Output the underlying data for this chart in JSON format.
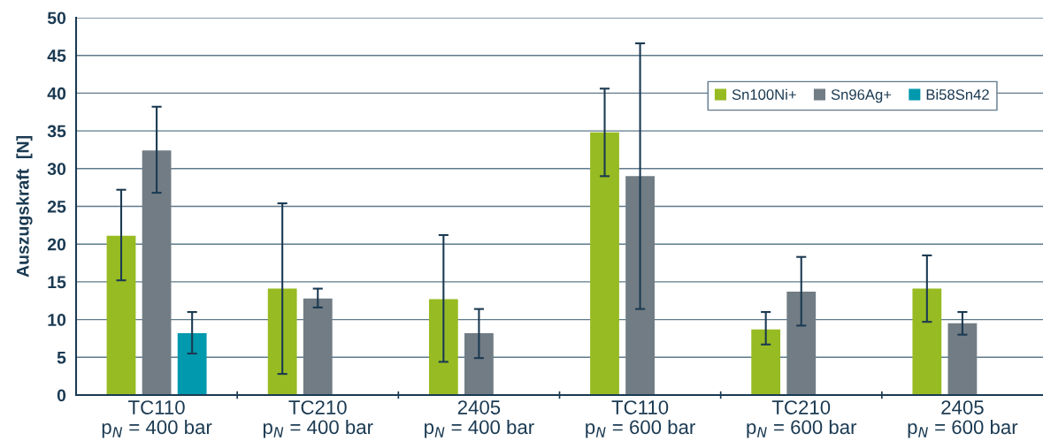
{
  "chart_data": {
    "type": "bar",
    "ylabel": "Auszugskraft  [N]",
    "categories": [
      "TC110\np$_{N}$ = 400 bar",
      "TC210\np$_{N}$ = 400 bar",
      "2405\np$_{N}$ = 400 bar",
      "TC110\np$_{N}$ = 600 bar",
      "TC210\np$_{N}$ = 600 bar",
      "2405\np$_{N}$ = 600 bar"
    ],
    "series": [
      {
        "name": "Sn100Ni+",
        "color": "#97bb22",
        "values": [
          21.1,
          14.1,
          12.7,
          34.8,
          8.7,
          14.1
        ],
        "errors": [
          [
            15.2,
            27.2
          ],
          [
            2.8,
            25.4
          ],
          [
            4.4,
            21.2
          ],
          [
            29.0,
            40.6
          ],
          [
            6.7,
            11.0
          ],
          [
            9.7,
            18.5
          ]
        ]
      },
      {
        "name": "Sn96Ag+",
        "color": "#717c84",
        "values": [
          32.4,
          12.8,
          8.2,
          29.0,
          13.7,
          9.5
        ],
        "errors": [
          [
            26.8,
            38.2
          ],
          [
            11.6,
            14.1
          ],
          [
            4.9,
            11.4
          ],
          [
            11.4,
            46.6
          ],
          [
            9.2,
            18.3
          ],
          [
            8.0,
            11.0
          ]
        ]
      },
      {
        "name": "Bi58Sn42",
        "color": "#0099ae",
        "values": [
          8.2,
          null,
          null,
          null,
          null,
          null
        ],
        "errors": [
          [
            5.5,
            11.0
          ],
          null,
          null,
          null,
          null,
          null
        ]
      }
    ],
    "ylim": [
      0,
      50
    ],
    "yticks": [
      0,
      5,
      10,
      15,
      20,
      25,
      30,
      35,
      40,
      45,
      50
    ],
    "grid": "y",
    "legend": "top right"
  }
}
